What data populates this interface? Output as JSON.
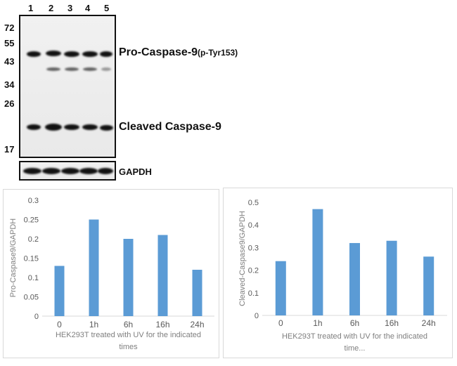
{
  "blot": {
    "lanes": [
      "1",
      "2",
      "3",
      "4",
      "5"
    ],
    "markers": [
      "72",
      "55",
      "43",
      "34",
      "26",
      "17"
    ],
    "labels": {
      "pro_main": "Pro-Caspase-9",
      "pro_sub": "(p-Tyr153)",
      "cleaved": "Cleaved Caspase-9",
      "loading": "GAPDH"
    }
  },
  "chart_data": [
    {
      "type": "bar",
      "categories": [
        "0",
        "1h",
        "6h",
        "16h",
        "24h"
      ],
      "values": [
        0.13,
        0.25,
        0.2,
        0.21,
        0.12
      ],
      "ylabel": "Pro-Caspase9/GAPDH",
      "xlabel_lines": [
        "HEK293T treated with UV for the indicated",
        "times"
      ],
      "ylim": [
        0,
        0.3
      ],
      "yticks": [
        0,
        0.05,
        0.1,
        0.15,
        0.2,
        0.25,
        0.3
      ],
      "ytick_labels": [
        "0",
        "0.05",
        "0.1",
        "0.15",
        "0.2",
        "0.25",
        "0.3"
      ],
      "bar_color": "#5b9bd5",
      "grid": false
    },
    {
      "type": "bar",
      "categories": [
        "0",
        "1h",
        "6h",
        "16h",
        "24h"
      ],
      "values": [
        0.24,
        0.47,
        0.32,
        0.33,
        0.26
      ],
      "ylabel": "Cleaved-Caspase9/GAPDH",
      "xlabel_lines": [
        "HEK293T treated with UV for the indicated",
        "time..."
      ],
      "ylim": [
        0,
        0.5
      ],
      "yticks": [
        0,
        0.1,
        0.2,
        0.3,
        0.4,
        0.5
      ],
      "ytick_labels": [
        "0",
        "0.1",
        "0.2",
        "0.3",
        "0.4",
        "0.5"
      ],
      "bar_color": "#5b9bd5",
      "grid": false
    }
  ]
}
